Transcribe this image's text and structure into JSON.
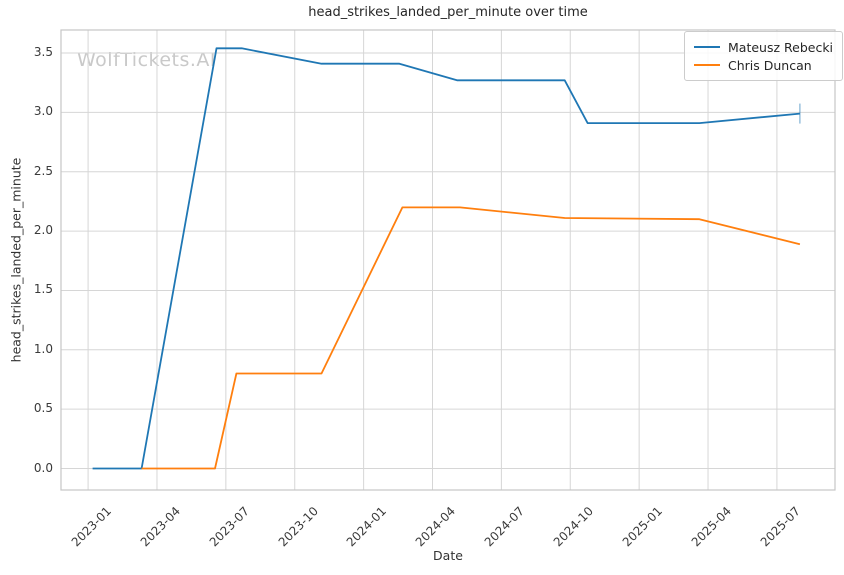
{
  "chart_data": {
    "type": "line",
    "title": "head_strikes_landed_per_minute over time",
    "xlabel": "Date",
    "ylabel": "head_strikes_landed_per_minute",
    "watermark": "WolfTickets.AI",
    "x_tick_labels": [
      "2023-01",
      "2023-04",
      "2023-07",
      "2023-10",
      "2024-01",
      "2024-04",
      "2024-07",
      "2024-10",
      "2025-01",
      "2025-04",
      "2025-07"
    ],
    "y_ticks": [
      0.0,
      0.5,
      1.0,
      1.5,
      2.0,
      2.5,
      3.0,
      3.5
    ],
    "xlim_months": [
      -1.18,
      32.53
    ],
    "ylim": [
      -0.181,
      3.694
    ],
    "grid": true,
    "legend_position": "upper right",
    "series": [
      {
        "name": "Mateusz Rebecki",
        "color": "#1f77b4",
        "end_tick": true,
        "points": [
          {
            "date": "2023-01-07",
            "value": 0.0
          },
          {
            "date": "2023-03-11",
            "value": 0.0
          },
          {
            "date": "2023-06-19",
            "value": 3.54
          },
          {
            "date": "2023-07-22",
            "value": 3.54
          },
          {
            "date": "2023-11-06",
            "value": 3.41
          },
          {
            "date": "2024-02-18",
            "value": 3.41
          },
          {
            "date": "2024-05-03",
            "value": 3.27
          },
          {
            "date": "2024-09-24",
            "value": 3.27
          },
          {
            "date": "2024-10-24",
            "value": 2.91
          },
          {
            "date": "2025-03-20",
            "value": 2.91
          },
          {
            "date": "2025-08-01",
            "value": 2.99
          }
        ]
      },
      {
        "name": "Chris Duncan",
        "color": "#ff7f0e",
        "end_tick": false,
        "points": [
          {
            "date": "2023-03-11",
            "value": 0.0
          },
          {
            "date": "2023-06-17",
            "value": 0.0
          },
          {
            "date": "2023-07-15",
            "value": 0.8
          },
          {
            "date": "2023-11-06",
            "value": 0.8
          },
          {
            "date": "2024-02-22",
            "value": 2.2
          },
          {
            "date": "2024-05-07",
            "value": 2.2
          },
          {
            "date": "2024-09-24",
            "value": 2.11
          },
          {
            "date": "2025-03-20",
            "value": 2.1
          },
          {
            "date": "2025-08-01",
            "value": 1.89
          }
        ]
      }
    ]
  },
  "colors": {
    "background": "#ffffff",
    "grid": "#d6d6d6",
    "frame": "#c6c6c6",
    "tick_text": "#3a3a3a",
    "title_text": "#262626",
    "watermark": "#c9c9c9"
  }
}
